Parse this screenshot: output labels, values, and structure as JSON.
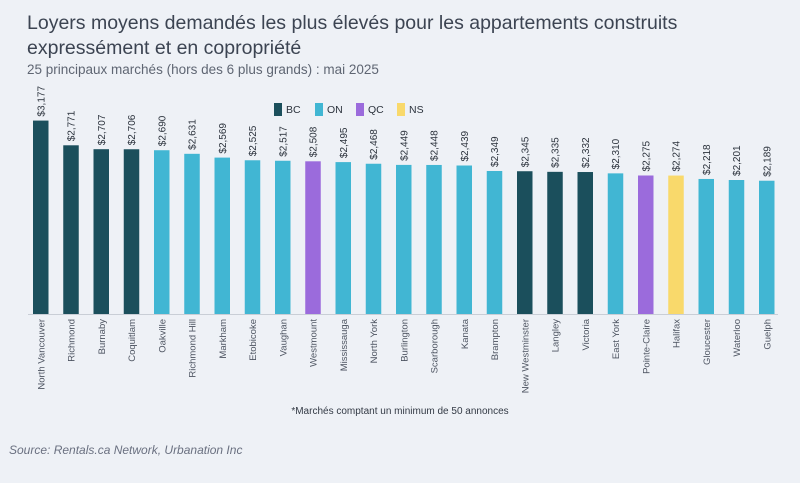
{
  "chart_data": {
    "type": "bar",
    "title": "Loyers moyens demandés les plus élevés pour les appartements construits expressément et en copropriété",
    "subtitle": "25 principaux marchés (hors des 6 plus grands) : mai 2025",
    "xlabel": "",
    "ylabel": "",
    "ylim": [
      0,
      3400
    ],
    "grid": false,
    "legend_position": "top-center",
    "legend": [
      {
        "key": "BC",
        "label": "BC",
        "color": "#1b4f5c"
      },
      {
        "key": "ON",
        "label": "ON",
        "color": "#41b6d3"
      },
      {
        "key": "QC",
        "label": "QC",
        "color": "#9b6bdc"
      },
      {
        "key": "NS",
        "label": "NS",
        "color": "#f9d96b"
      }
    ],
    "categories": [
      "North Vancouver",
      "Richmond",
      "Burnaby",
      "Coquitlam",
      "Oakville",
      "Richmond Hill",
      "Markham",
      "Etobicoke",
      "Vaughan",
      "Westmount",
      "Mississauga",
      "North York",
      "Burlington",
      "Scarborough",
      "Kanata",
      "Brampton",
      "New Westminster",
      "Langley",
      "Victoria",
      "East York",
      "Pointe-Claire",
      "Halifax",
      "Gloucester",
      "Waterloo",
      "Guelph"
    ],
    "values": [
      3177,
      2771,
      2707,
      2706,
      2690,
      2631,
      2569,
      2525,
      2517,
      2508,
      2495,
      2468,
      2449,
      2448,
      2439,
      2349,
      2345,
      2335,
      2332,
      2310,
      2275,
      2274,
      2218,
      2201,
      2189
    ],
    "value_labels": [
      "$3,177",
      "$2,771",
      "$2,707",
      "$2,706",
      "$2,690",
      "$2,631",
      "$2,569",
      "$2,525",
      "$2,517",
      "$2,508",
      "$2,495",
      "$2,468",
      "$2,449",
      "$2,448",
      "$2,439",
      "$2,349",
      "$2,345",
      "$2,335",
      "$2,332",
      "$2,310",
      "$2,275",
      "$2,274",
      "$2,218",
      "$2,201",
      "$2,189"
    ],
    "groups": [
      "BC",
      "BC",
      "BC",
      "BC",
      "ON",
      "ON",
      "ON",
      "ON",
      "ON",
      "QC",
      "ON",
      "ON",
      "ON",
      "ON",
      "ON",
      "ON",
      "BC",
      "BC",
      "BC",
      "ON",
      "QC",
      "NS",
      "ON",
      "ON",
      "ON"
    ]
  },
  "footnote": "*Marchés comptant un minimum de 50 annonces",
  "source": "Source: Rentals.ca Network, Urbanation Inc"
}
